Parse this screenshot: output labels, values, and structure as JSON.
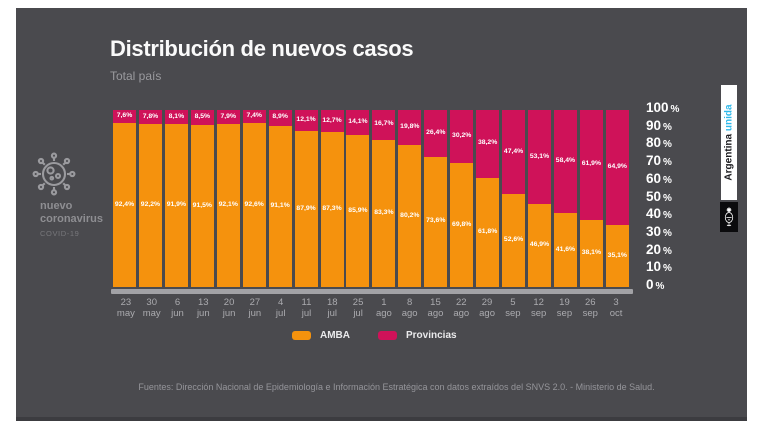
{
  "header": {
    "title": "Distribución de nuevos casos",
    "subtitle": "Total país"
  },
  "left_badge": {
    "name_line1": "nuevo",
    "name_line2": "coronavirus",
    "sub": "COVID-19"
  },
  "brand": {
    "word1": "Argentina",
    "word2": "unida",
    "word2_color": "#2FB9EA"
  },
  "legend": {
    "items": [
      {
        "label": "AMBA",
        "color": "#F5920D"
      },
      {
        "label": "Provincias",
        "color": "#CF1259"
      }
    ]
  },
  "footer": {
    "source": "Fuentes: Dirección Nacional de Epidemiología e Información Estratégica con datos extraídos del SNVS 2.0. - Ministerio de Salud."
  },
  "colors": {
    "panel_bg": "#4A4A4E",
    "amba": "#F5920D",
    "provincias": "#CF1259"
  },
  "chart_data": {
    "type": "bar",
    "stacked": true,
    "title": "Distribución de nuevos casos",
    "subtitle": "Total país",
    "categories": [
      "23 may",
      "30 may",
      "6 jun",
      "13 jun",
      "20 jun",
      "27 jun",
      "4 jul",
      "11 jul",
      "18 jul",
      "25 jul",
      "1 ago",
      "8 ago",
      "15 ago",
      "22 ago",
      "29 ago",
      "5 sep",
      "12 sep",
      "19 sep",
      "26 sep",
      "3 oct"
    ],
    "series": [
      {
        "name": "AMBA",
        "color": "#F5920D",
        "values": [
          92.4,
          92.2,
          91.9,
          91.5,
          92.1,
          92.6,
          91.1,
          87.9,
          87.3,
          85.9,
          83.3,
          80.2,
          73.6,
          69.8,
          61.8,
          52.6,
          46.9,
          41.6,
          38.1,
          35.1
        ]
      },
      {
        "name": "Provincias",
        "color": "#CF1259",
        "values": [
          7.6,
          7.8,
          8.1,
          8.5,
          7.9,
          7.4,
          8.9,
          12.1,
          12.7,
          14.1,
          16.7,
          19.8,
          26.4,
          30.2,
          38.2,
          47.4,
          53.1,
          58.4,
          61.9,
          64.9
        ]
      }
    ],
    "xlabel": "",
    "ylabel": "",
    "ylim": [
      0,
      100
    ],
    "y_ticks": [
      100,
      90,
      80,
      70,
      60,
      50,
      40,
      30,
      20,
      10,
      0
    ],
    "y_tick_suffix": "%",
    "value_labels": "comma-decimal percent on each segment",
    "grid": false,
    "legend_position": "bottom"
  }
}
